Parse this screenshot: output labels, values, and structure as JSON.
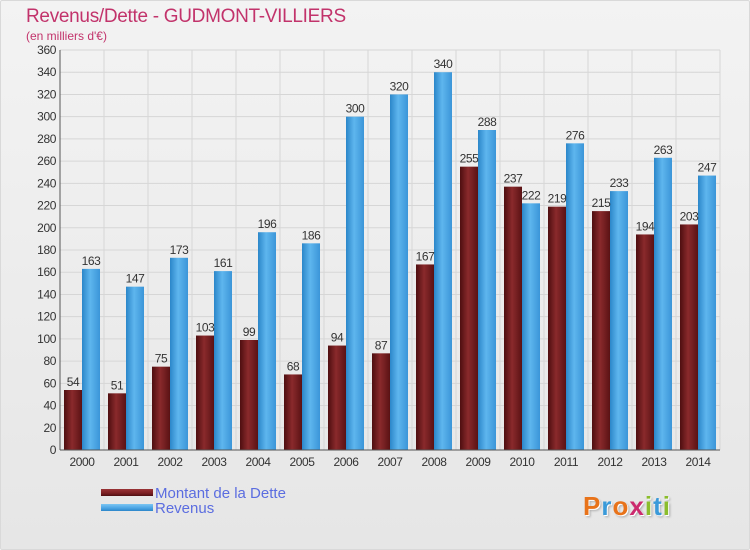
{
  "header": {
    "title": "Revenus/Dette - GUDMONT-VILLIERS",
    "subtitle": "(en milliers d'€)"
  },
  "chart_data": {
    "type": "bar",
    "title": "Revenus/Dette - GUDMONT-VILLIERS",
    "subtitle": "(en milliers d'€)",
    "xlabel": "",
    "ylabel": "",
    "ylim": [
      0,
      360
    ],
    "yticks": [
      0,
      20,
      40,
      60,
      80,
      100,
      120,
      140,
      160,
      180,
      200,
      220,
      240,
      260,
      280,
      300,
      320,
      340,
      360
    ],
    "grid": true,
    "legend_position": "bottom-left",
    "categories": [
      "2000",
      "2001",
      "2002",
      "2003",
      "2004",
      "2005",
      "2006",
      "2007",
      "2008",
      "2009",
      "2010",
      "2011",
      "2012",
      "2013",
      "2014"
    ],
    "series": [
      {
        "name": "Montant de la Dette",
        "color": "#7a1f22",
        "values": [
          54,
          51,
          75,
          103,
          99,
          68,
          94,
          87,
          167,
          255,
          237,
          219,
          215,
          194,
          203
        ]
      },
      {
        "name": "Revenus",
        "color": "#4aa3e3",
        "values": [
          163,
          147,
          173,
          161,
          196,
          186,
          300,
          320,
          340,
          288,
          222,
          276,
          233,
          263,
          247
        ]
      }
    ]
  },
  "legend": {
    "items": [
      {
        "label": "Montant de la Dette",
        "color": "#7a1f22"
      },
      {
        "label": "Revenus",
        "color": "#4aa3e3"
      }
    ]
  },
  "logo": {
    "text": "Proxiti",
    "letters": [
      "P",
      "r",
      "o",
      "x",
      "i",
      "t",
      "i"
    ],
    "colors": [
      "#e8731a",
      "#3a9ad9",
      "#e8731a",
      "#cc2a6e",
      "#8bbd2c",
      "#3a9ad9",
      "#8bbd2c"
    ]
  }
}
